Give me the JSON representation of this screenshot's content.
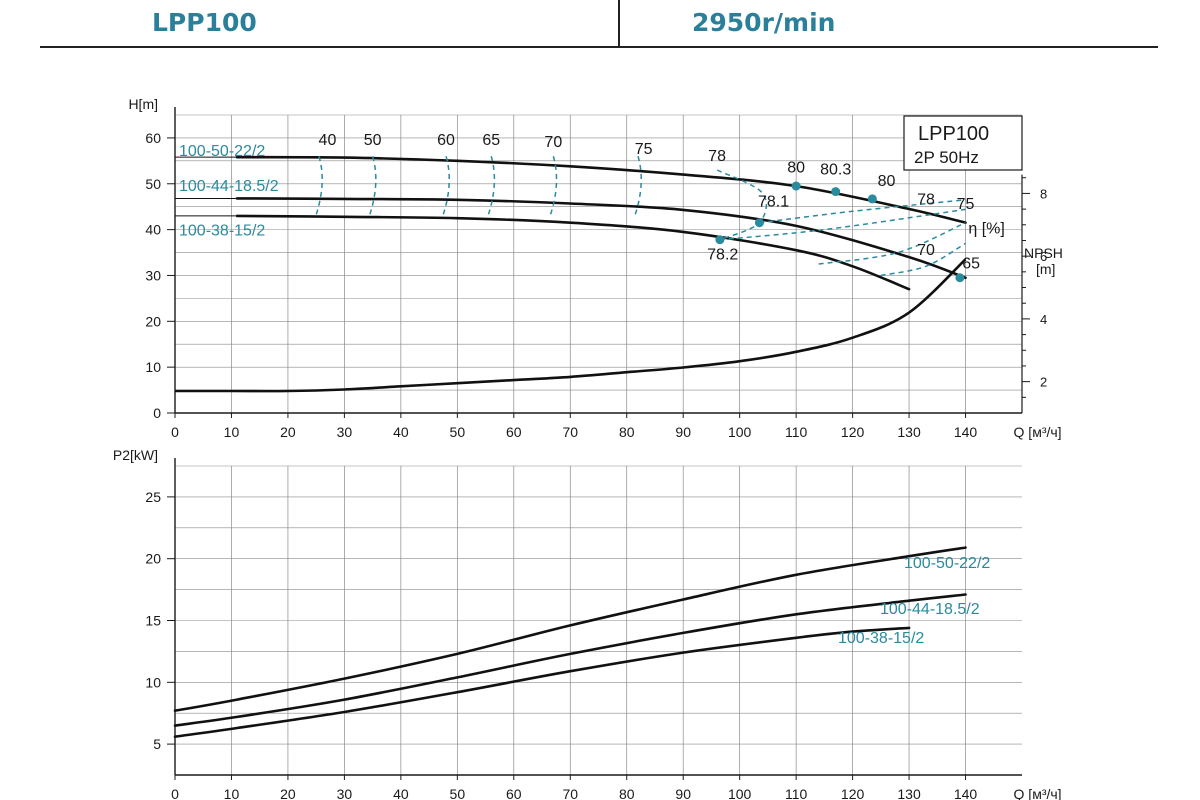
{
  "header": {
    "left_title": "LPP100",
    "right_title": "2950r/min"
  },
  "colors": {
    "curve": "#111111",
    "teal": "#2a8a9e",
    "grid": "#8a8a8a",
    "text": "#1a1a1a"
  },
  "chart_data": [
    {
      "type": "line",
      "title": "",
      "legend_box": [
        "LPP100",
        "2P  50Hz"
      ],
      "ylabel": "H[m]",
      "xlabel": "Q [м³/ч]",
      "xlim": [
        0,
        150
      ],
      "ylim": [
        0,
        65
      ],
      "x_ticks": [
        0,
        10,
        20,
        30,
        40,
        50,
        60,
        70,
        80,
        90,
        100,
        110,
        120,
        130,
        140
      ],
      "y_ticks": [
        0,
        10,
        20,
        30,
        40,
        50,
        60
      ],
      "grid": true,
      "series": [
        {
          "name": "100-50-22/2",
          "x": [
            11,
            30,
            50,
            70,
            90,
            110,
            130,
            140
          ],
          "y": [
            55.8,
            55.7,
            55.0,
            53.8,
            52.0,
            49.5,
            44.5,
            41.5
          ]
        },
        {
          "name": "100-44-18.5/2",
          "x": [
            11,
            30,
            50,
            70,
            90,
            110,
            130,
            140
          ],
          "y": [
            46.8,
            46.7,
            46.5,
            45.7,
            44.3,
            40.8,
            34.0,
            29.5
          ]
        },
        {
          "name": "100-38-15/2",
          "x": [
            11,
            30,
            50,
            70,
            90,
            110,
            120,
            130
          ],
          "y": [
            43.0,
            42.8,
            42.5,
            41.5,
            39.5,
            35.5,
            32.0,
            27.0
          ]
        }
      ],
      "efficiency_label": "η [%]",
      "efficiency_labels": [
        {
          "text": "40",
          "x": 27,
          "y": 58.5
        },
        {
          "text": "50",
          "x": 35,
          "y": 58.5
        },
        {
          "text": "60",
          "x": 48,
          "y": 58.5
        },
        {
          "text": "65",
          "x": 56,
          "y": 58.5
        },
        {
          "text": "70",
          "x": 67,
          "y": 58.0
        },
        {
          "text": "75",
          "x": 83,
          "y": 56.5
        },
        {
          "text": "78",
          "x": 96,
          "y": 55.0
        },
        {
          "text": "80",
          "x": 110,
          "y": 52.5
        },
        {
          "text": "80.3",
          "x": 117,
          "y": 52.0
        },
        {
          "text": "80",
          "x": 126,
          "y": 49.5
        },
        {
          "text": "78",
          "x": 133,
          "y": 45.5
        },
        {
          "text": "75",
          "x": 140,
          "y": 44.5
        },
        {
          "text": "78.1",
          "x": 106,
          "y": 45.0
        },
        {
          "text": "78.2",
          "x": 97,
          "y": 33.5
        },
        {
          "text": "70",
          "x": 133,
          "y": 34.5
        },
        {
          "text": "65",
          "x": 141,
          "y": 31.5
        }
      ],
      "best_efficiency_points": [
        {
          "x": 110,
          "y": 49.5
        },
        {
          "x": 117,
          "y": 48.3
        },
        {
          "x": 123.5,
          "y": 46.7
        },
        {
          "x": 103.5,
          "y": 41.5
        },
        {
          "x": 96.5,
          "y": 37.8
        },
        {
          "x": 139,
          "y": 29.5
        }
      ],
      "npsh": {
        "label": "NPSH",
        "unit": "[m]",
        "ticks": [
          2,
          4,
          6,
          8
        ],
        "x": [
          0,
          10,
          20,
          30,
          40,
          50,
          60,
          70,
          80,
          90,
          100,
          110,
          120,
          130,
          140
        ],
        "y": [
          1.7,
          1.7,
          1.7,
          1.75,
          1.85,
          1.95,
          2.05,
          2.15,
          2.3,
          2.45,
          2.65,
          2.95,
          3.4,
          4.2,
          5.9
        ]
      }
    },
    {
      "type": "line",
      "title": "",
      "ylabel": "P2[kW]",
      "xlabel": "Q [м³/ч]",
      "xlim": [
        0,
        150
      ],
      "ylim": [
        2.5,
        27.5
      ],
      "x_ticks": [
        0,
        10,
        20,
        30,
        40,
        50,
        60,
        70,
        80,
        90,
        100,
        110,
        120,
        130,
        140
      ],
      "y_ticks": [
        5,
        10,
        15,
        20,
        25
      ],
      "grid": true,
      "series": [
        {
          "name": "100-50-22/2",
          "x": [
            0,
            11,
            30,
            50,
            70,
            90,
            110,
            130,
            140
          ],
          "y": [
            7.7,
            8.6,
            10.3,
            12.3,
            14.6,
            16.7,
            18.7,
            20.2,
            20.9
          ]
        },
        {
          "name": "100-44-18.5/2",
          "x": [
            0,
            11,
            30,
            50,
            70,
            90,
            110,
            130,
            140
          ],
          "y": [
            6.5,
            7.2,
            8.6,
            10.4,
            12.3,
            14.0,
            15.5,
            16.6,
            17.1
          ]
        },
        {
          "name": "100-38-15/2",
          "x": [
            0,
            11,
            30,
            50,
            70,
            90,
            110,
            120,
            130
          ],
          "y": [
            5.6,
            6.3,
            7.6,
            9.2,
            10.9,
            12.4,
            13.6,
            14.1,
            14.4
          ]
        }
      ]
    }
  ]
}
